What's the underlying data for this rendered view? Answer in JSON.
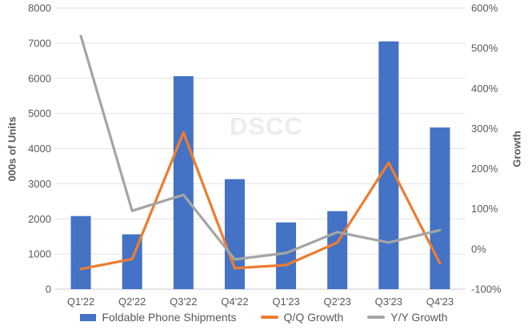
{
  "watermark": "DSCC",
  "colors": {
    "bar_blue": "#4472C4",
    "line_orange": "#ED7D31",
    "line_gray": "#A5A5A5",
    "gridline": "#E2E2E2",
    "axis_line": "#C9C9C9",
    "text_gray": "#595959",
    "watermark_gray": "#ECECEC"
  },
  "chart_data": {
    "type": "bar",
    "subtype": "combo bar+line, dual axis",
    "categories": [
      "Q1'22",
      "Q2'22",
      "Q3'22",
      "Q4'22",
      "Q1'23",
      "Q2'23",
      "Q3'23",
      "Q4'23"
    ],
    "series": [
      {
        "name": "Foldable Phone Shipments",
        "type": "bar",
        "axis": "left",
        "color": "#4472C4",
        "values": [
          2080,
          1560,
          6060,
          3130,
          1900,
          2220,
          7050,
          4600
        ]
      },
      {
        "name": "Q/Q Growth",
        "type": "line",
        "axis": "right",
        "color": "#ED7D31",
        "values": [
          -50,
          -25,
          290,
          -48,
          -40,
          16,
          215,
          -36
        ]
      },
      {
        "name": "Y/Y Growth",
        "type": "line",
        "axis": "right",
        "color": "#A5A5A5",
        "values": [
          530,
          95,
          135,
          -26,
          -10,
          42,
          16,
          47
        ]
      }
    ],
    "left_axis": {
      "title": "000s of Units",
      "min": 0,
      "max": 8000,
      "step": 1000,
      "tick_labels": [
        "0",
        "1000",
        "2000",
        "3000",
        "4000",
        "5000",
        "6000",
        "7000",
        "8000"
      ]
    },
    "right_axis": {
      "title": "Growth",
      "min": -100,
      "max": 600,
      "step": 100,
      "tick_labels": [
        "-100%",
        "0%",
        "100%",
        "200%",
        "300%",
        "400%",
        "500%",
        "600%"
      ]
    },
    "grid": true,
    "legend_position": "bottom"
  },
  "legend": {
    "items": [
      {
        "label": "Foldable Phone Shipments",
        "swatch": "bar",
        "color": "#4472C4"
      },
      {
        "label": "Q/Q Growth",
        "swatch": "line",
        "color": "#ED7D31"
      },
      {
        "label": "Y/Y Growth",
        "swatch": "line",
        "color": "#A5A5A5"
      }
    ]
  }
}
